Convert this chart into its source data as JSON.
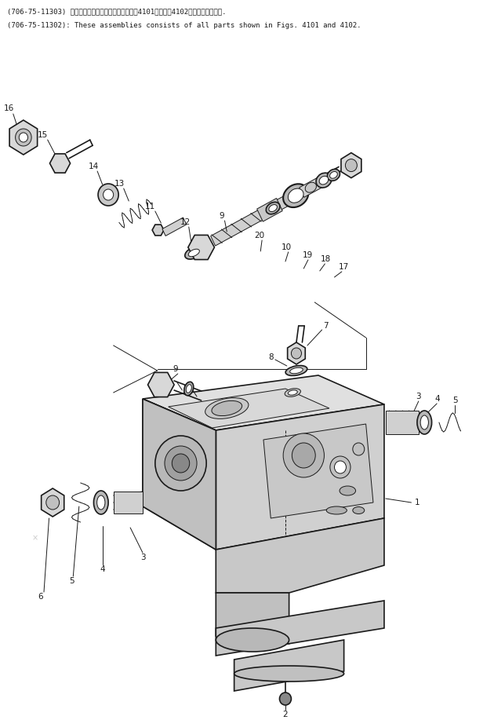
{
  "title_line1": "(706-75-11303) これらのアセンブリの構成部品は笥4101および笥4102図までを含みます.",
  "title_line2": "(706-75-11302): These assemblies consists of all parts shown in Figs. 4101 and 4102.",
  "bg_color": "#ffffff",
  "lc": "#1a1a1a"
}
